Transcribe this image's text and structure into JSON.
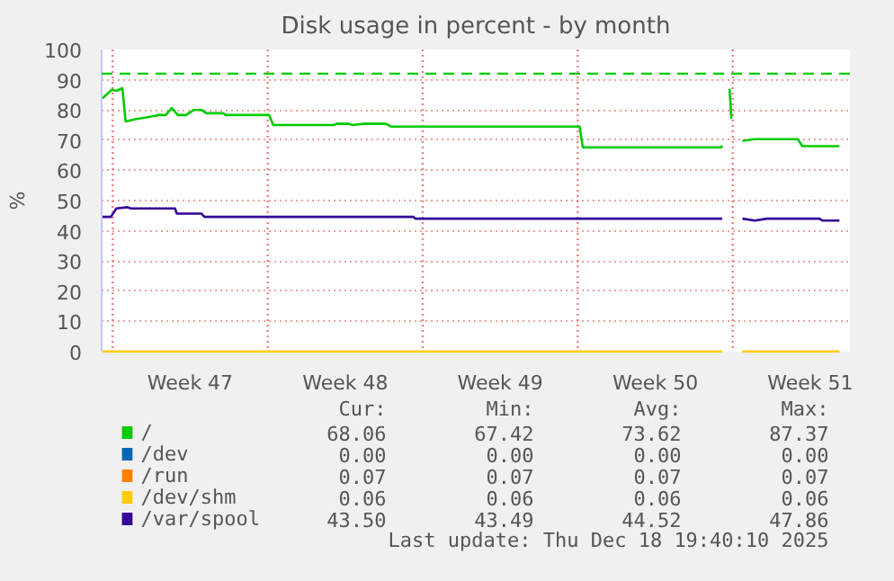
{
  "chart_data": {
    "type": "line",
    "title": "Disk usage in percent - by month",
    "ylabel": "%",
    "xlim": [
      "2025-11-15T12:00",
      "2025-12-19T07:00"
    ],
    "ylim": [
      0,
      100
    ],
    "xticks": [
      {
        "value": "2025-11-19T12:00",
        "label": "Week 47"
      },
      {
        "value": "2025-11-26T12:00",
        "label": "Week 48"
      },
      {
        "value": "2025-12-03T12:00",
        "label": "Week 49"
      },
      {
        "value": "2025-12-10T12:00",
        "label": "Week 50"
      },
      {
        "value": "2025-12-17T12:00",
        "label": "Week 51"
      }
    ],
    "yticks": [
      0,
      10,
      20,
      30,
      40,
      50,
      60,
      70,
      80,
      90,
      100
    ],
    "grid": "y",
    "legend": "bottom",
    "line_style": "solid",
    "ref_lines": [
      {
        "axis": "y",
        "value": 92,
        "color": "#00cc00",
        "line_style": "dashed"
      },
      {
        "axis": "x",
        "value": "2025-11-16",
        "color": "#f08080",
        "line_style": "dotted"
      },
      {
        "axis": "x",
        "value": "2025-11-23",
        "color": "#f08080",
        "line_style": "dotted"
      },
      {
        "axis": "x",
        "value": "2025-11-30",
        "color": "#f08080",
        "line_style": "dotted"
      },
      {
        "axis": "x",
        "value": "2025-12-07",
        "color": "#f08080",
        "line_style": "dotted"
      },
      {
        "axis": "x",
        "value": "2025-12-14",
        "color": "#f08080",
        "line_style": "dotted"
      }
    ],
    "series": [
      {
        "name": "/",
        "color": "#00cc00",
        "x": [
          "2025-11-15T13:00",
          "2025-11-15T23:00",
          "2025-11-16T04:00",
          "2025-11-16T10:30",
          "2025-11-16T14:00",
          "2025-11-17T02:00",
          "2025-11-17T15:30",
          "2025-11-18T01:30",
          "2025-11-18T09:30",
          "2025-11-18T16:00",
          "2025-11-18T22:30",
          "2025-11-19T07:30",
          "2025-11-19T16:00",
          "2025-11-20T00:00",
          "2025-11-20T05:30",
          "2025-11-20T23:30",
          "2025-11-21T02:30",
          "2025-11-23T01:30",
          "2025-11-23T06:00",
          "2025-11-25T23:30",
          "2025-11-26T02:30",
          "2025-11-26T16:00",
          "2025-11-26T19:30",
          "2025-11-27T08:30",
          "2025-11-28T08:00",
          "2025-11-28T13:30",
          "2025-12-07T02:00",
          "2025-12-07T05:30",
          "2025-12-13T11:30",
          "2025-12-13T12:30",
          "2025-12-13T17:00",
          "2025-12-13T20:30",
          "2025-12-13T22:30",
          "2025-12-14T05:00",
          "2025-12-14T10:30",
          "2025-12-14T22:30",
          "2025-12-16T22:30",
          "2025-12-17T03:30",
          "2025-12-18T19:40"
        ],
        "values": [
          83.8,
          86.7,
          86.3,
          87.2,
          76.2,
          77,
          77.7,
          78.3,
          78.3,
          80.6,
          78.3,
          78.3,
          80,
          80,
          78.9,
          78.9,
          78.3,
          78.3,
          75,
          75,
          75.4,
          75.4,
          75,
          75.4,
          75.4,
          74.5,
          74.5,
          67.6,
          67.6,
          68.2,
          null,
          87,
          77.1,
          null,
          69.7,
          70.3,
          70.3,
          68,
          68
        ]
      },
      {
        "name": "/dev",
        "color": "#0066b3"
      },
      {
        "name": "/run",
        "color": "#ff8000"
      },
      {
        "name": "/dev/shm",
        "color": "#ffcc00",
        "x": [
          "2025-11-15T13:00",
          "2025-12-13T12:30",
          "2025-12-14T00:00",
          "2025-12-14T10:30",
          "2025-12-18T19:40"
        ],
        "values": [
          0.06,
          0.06,
          null,
          0.06,
          0.06
        ]
      },
      {
        "name": "/var/spool",
        "color": "#330099",
        "x": [
          "2025-11-15T13:00",
          "2025-11-15T22:00",
          "2025-11-16T04:00",
          "2025-11-16T16:00",
          "2025-11-16T19:30",
          "2025-11-18T19:30",
          "2025-11-18T21:30",
          "2025-11-20T00:00",
          "2025-11-20T03:30",
          "2025-11-29T14:00",
          "2025-11-29T16:00",
          "2025-12-13T12:30",
          "2025-12-14T00:00",
          "2025-12-14T10:30",
          "2025-12-15T00:00",
          "2025-12-15T13:00",
          "2025-12-17T22:00",
          "2025-12-18T01:00",
          "2025-12-18T19:40"
        ],
        "values": [
          44.6,
          44.6,
          47.4,
          47.8,
          47.4,
          47.4,
          45.7,
          45.7,
          44.6,
          44.6,
          44,
          44,
          null,
          44,
          43.4,
          44,
          44,
          43.4,
          43.4
        ]
      }
    ],
    "annotations": [
      "Cur:",
      "Min:",
      "Avg:",
      "Max:",
      "68.06",
      "67.42",
      "73.62",
      "87.37",
      "0.00",
      "0.00",
      "0.00",
      "0.00",
      "0.07",
      "0.07",
      "0.07",
      "0.07",
      "0.06",
      "0.06",
      "0.06",
      "0.06",
      "43.50",
      "43.49",
      "44.52",
      "47.86",
      "Last update: Thu Dec 18 19:40:10 2025"
    ]
  }
}
